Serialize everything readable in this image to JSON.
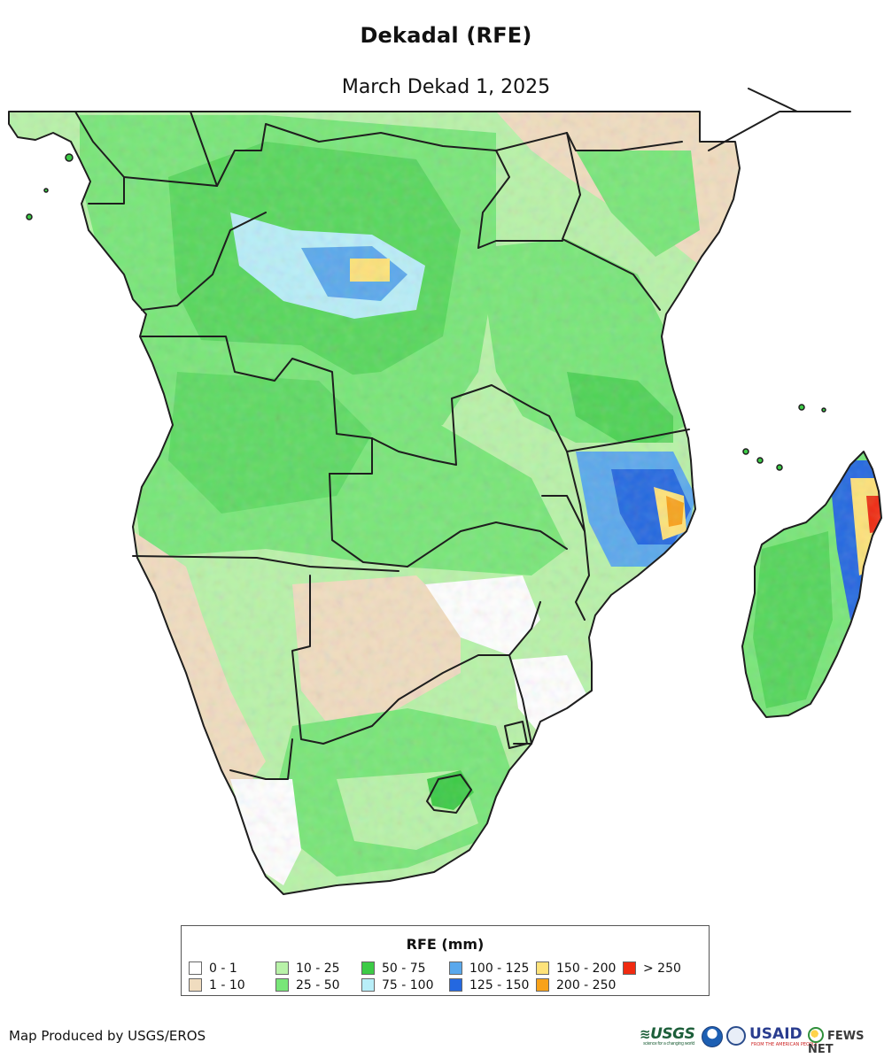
{
  "title": "Dekadal (RFE)",
  "subtitle": "March Dekad 1, 2025",
  "legend": {
    "title": "RFE (mm)",
    "items": [
      {
        "label": "0 - 1",
        "color": "#ffffff"
      },
      {
        "label": "1 - 10",
        "color": "#f0dcbf"
      },
      {
        "label": "10 - 25",
        "color": "#b8f2a8"
      },
      {
        "label": "25 - 50",
        "color": "#78e678"
      },
      {
        "label": "50 - 75",
        "color": "#3ccb46"
      },
      {
        "label": "75 - 100",
        "color": "#b8eef8"
      },
      {
        "label": "100 - 125",
        "color": "#5aa8ec"
      },
      {
        "label": "125 - 150",
        "color": "#2468e0"
      },
      {
        "label": "150 - 200",
        "color": "#fde27a"
      },
      {
        "label": "200 - 250",
        "color": "#f8a21a"
      },
      {
        "label": "> 250",
        "color": "#f02a10"
      }
    ]
  },
  "credit": "Map Produced by USGS/EROS",
  "logos": {
    "usgs": "USGS",
    "usgs_tagline": "science for a changing world",
    "usaid": "USAID",
    "usaid_tagline": "FROM THE AMERICAN PEOPLE",
    "fews": "FEWS NET"
  }
}
